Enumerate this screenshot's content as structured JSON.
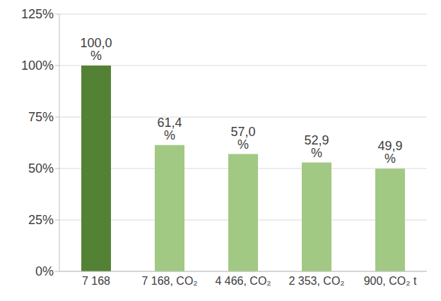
{
  "chart_data": {
    "type": "bar",
    "categories": [
      "7 168",
      "7 168, CO₂",
      "4 466, CO₂",
      "2 353, CO₂",
      "900, CO₂ t"
    ],
    "values": [
      100.0,
      61.4,
      57.0,
      52.9,
      49.9
    ],
    "value_labels": [
      "100,0 %",
      "61,4 %",
      "57,0 %",
      "52,9 %",
      "49,9 %"
    ],
    "colors": [
      "#548235",
      "#a1c983",
      "#a1c983",
      "#a1c983",
      "#a1c983"
    ],
    "ylim": [
      0,
      125
    ],
    "yticks": [
      {
        "value": 0,
        "label": "0%"
      },
      {
        "value": 25,
        "label": "25%"
      },
      {
        "value": 50,
        "label": "50%"
      },
      {
        "value": 75,
        "label": "75%"
      },
      {
        "value": 100,
        "label": "100%"
      },
      {
        "value": 125,
        "label": "125%"
      }
    ],
    "grid": true,
    "data_labels": true
  }
}
